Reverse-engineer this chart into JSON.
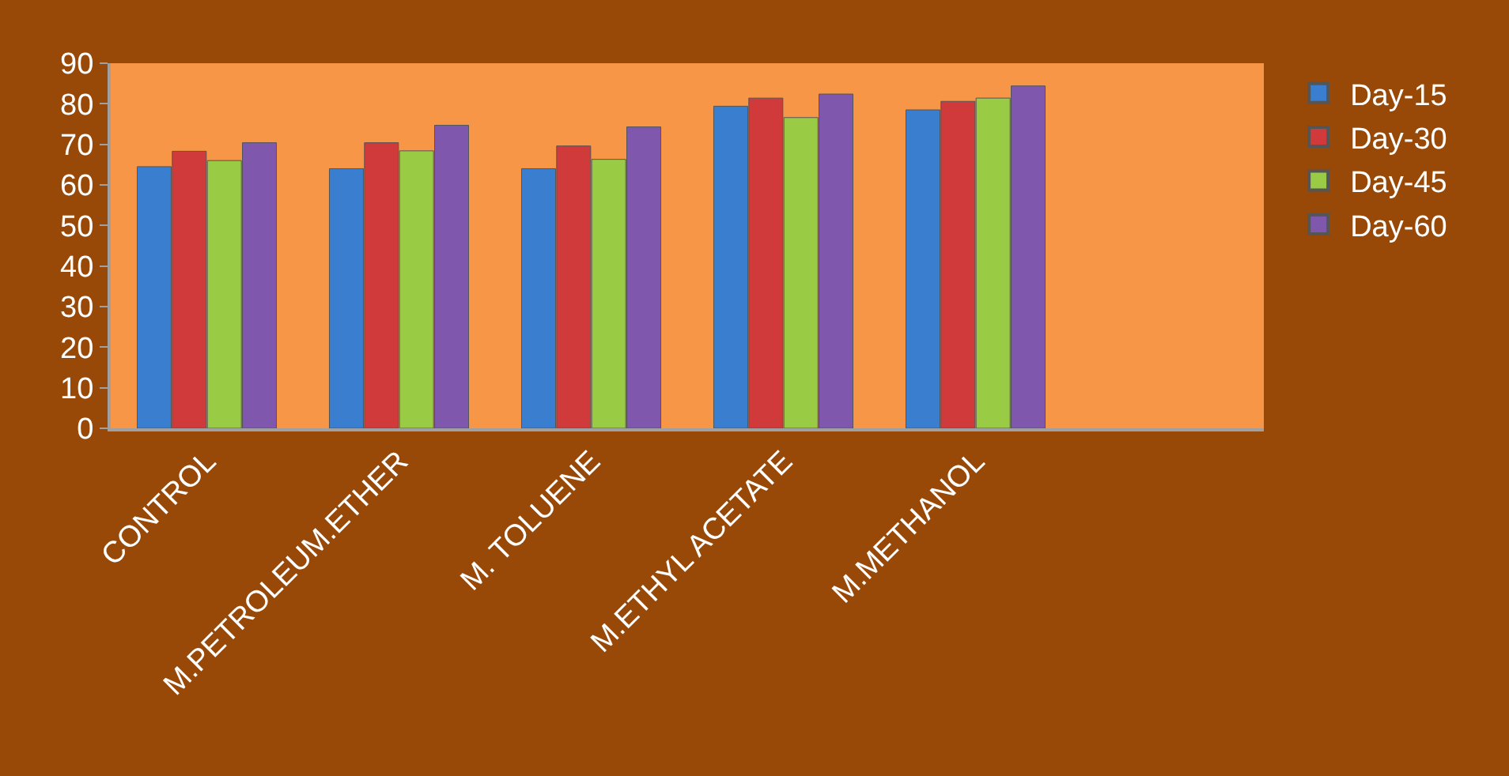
{
  "chart_data": {
    "type": "bar",
    "categories": [
      "CONTROL",
      "M.PETROLEUM.ETHER",
      "M. TOLUENE",
      "M.ETHYL ACETATE",
      "M.METHANOL",
      null
    ],
    "series": [
      {
        "name": "Day-15",
        "color": "#3a7fcf",
        "values": [
          64.5,
          64,
          64,
          79.4,
          78.5,
          null
        ]
      },
      {
        "name": "Day-30",
        "color": "#d03a3a",
        "values": [
          68.3,
          70.4,
          69.6,
          81.4,
          80.6,
          null
        ]
      },
      {
        "name": "Day-45",
        "color": "#9acb45",
        "values": [
          66,
          68.4,
          66.3,
          76.6,
          81.4,
          null
        ]
      },
      {
        "name": "Day-60",
        "color": "#7f58ae",
        "values": [
          70.4,
          74.7,
          74.3,
          82.4,
          84.4,
          null
        ]
      }
    ],
    "ylim": [
      0,
      90
    ],
    "yticks": [
      0,
      10,
      20,
      30,
      40,
      50,
      60,
      70,
      80,
      90
    ],
    "grid": false,
    "legend": "right"
  }
}
